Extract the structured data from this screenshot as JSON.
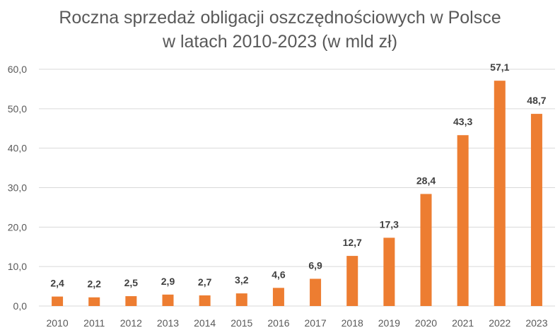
{
  "chart_data": {
    "type": "bar",
    "title_line1": "Roczna sprzedaż obligacji oszczędnościowych w Polsce",
    "title_line2": "w latach 2010-2023 (w mld zł)",
    "categories": [
      "2010",
      "2011",
      "2012",
      "2013",
      "2014",
      "2015",
      "2016",
      "2017",
      "2018",
      "2019",
      "2020",
      "2021",
      "2022",
      "2023"
    ],
    "values": [
      2.4,
      2.2,
      2.5,
      2.9,
      2.7,
      3.2,
      4.6,
      6.9,
      12.7,
      17.3,
      28.4,
      43.3,
      57.1,
      48.7
    ],
    "data_labels": [
      "2,4",
      "2,2",
      "2,5",
      "2,9",
      "2,7",
      "3,2",
      "4,6",
      "6,9",
      "12,7",
      "17,3",
      "28,4",
      "43,3",
      "57,1",
      "48,7"
    ],
    "yticks": [
      0,
      10,
      20,
      30,
      40,
      50,
      60
    ],
    "ytick_labels": [
      "0,0",
      "10,0",
      "20,0",
      "30,0",
      "40,0",
      "50,0",
      "60,0"
    ],
    "ylim": [
      0,
      60
    ],
    "grid": true,
    "legend": "none",
    "bar_color": "#ED7D31",
    "grid_color": "#D9D9D9"
  }
}
